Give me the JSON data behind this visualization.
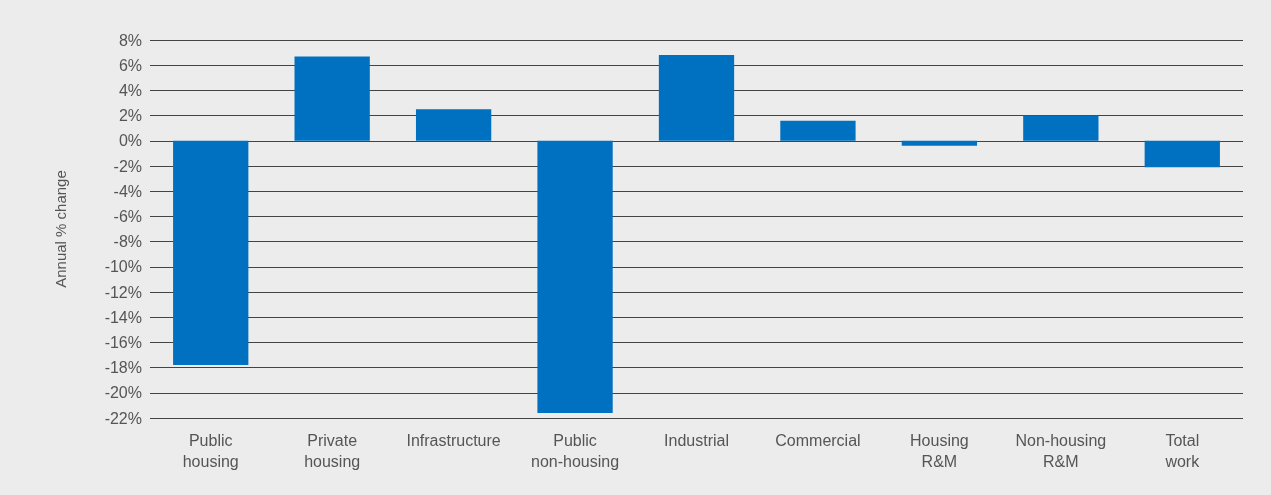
{
  "chart_data": {
    "type": "bar",
    "ylabel": "Annual % change",
    "categories": [
      "Public housing",
      "Private housing",
      "Infrastructure",
      "Public non-housing",
      "Industrial",
      "Commercial",
      "Housing R&M",
      "Non-housing R&M",
      "Total work"
    ],
    "values": [
      -17.8,
      6.7,
      2.5,
      -21.6,
      6.8,
      1.6,
      -0.4,
      2.0,
      -2.1
    ],
    "color": "#0070c0",
    "ylim": [
      -22,
      8
    ],
    "yticks": [
      {
        "value": -22,
        "label": "-22%"
      },
      {
        "value": -20,
        "label": "-20%"
      },
      {
        "value": -18,
        "label": "-18%"
      },
      {
        "value": -16,
        "label": "-16%"
      },
      {
        "value": -14,
        "label": "-14%"
      },
      {
        "value": -12,
        "label": "-12%"
      },
      {
        "value": -10,
        "label": "-10%"
      },
      {
        "value": -8,
        "label": "-8%"
      },
      {
        "value": -6,
        "label": "-6%"
      },
      {
        "value": -4,
        "label": "-4%"
      },
      {
        "value": -2,
        "label": "-2%"
      },
      {
        "value": 0,
        "label": "0%"
      },
      {
        "value": 2,
        "label": "2%"
      },
      {
        "value": 4,
        "label": "4%"
      },
      {
        "value": 6,
        "label": "6%"
      },
      {
        "value": 8,
        "label": "8%"
      }
    ],
    "grid": "y"
  }
}
